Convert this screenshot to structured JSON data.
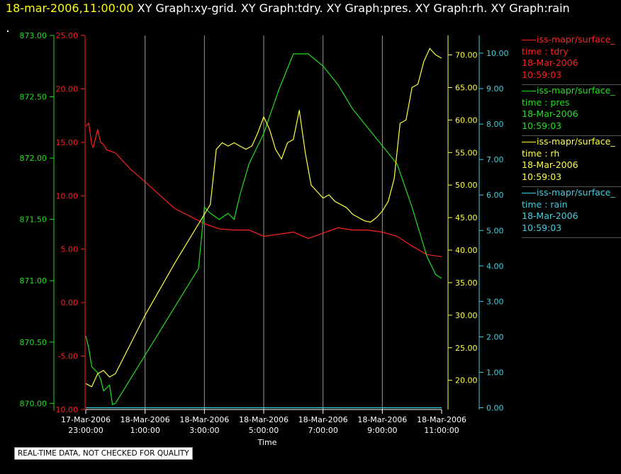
{
  "header": {
    "time": "18-mar-2006,11:00:00",
    "titles": "XY Graph:xy-grid.  XY Graph:tdry.  XY Graph:pres.  XY Graph:rh.  XY Graph:rain"
  },
  "quality_note": "REAL-TIME DATA, NOT CHECKED FOR QUALITY",
  "legend": [
    {
      "line1": "iss-mapr/surface_",
      "line2": "time : tdry",
      "line3": "18-Mar-2006",
      "line4": "10:59:03",
      "color": "#ff2020"
    },
    {
      "line1": "iss-mapr/surface_",
      "line2": "time : pres",
      "line3": "18-Mar-2006",
      "line4": "10:59:03",
      "color": "#20e020"
    },
    {
      "line1": "iss-mapr/surface_",
      "line2": "time : rh",
      "line3": "18-Mar-2006",
      "line4": "10:59:03",
      "color": "#ffff40"
    },
    {
      "line1": "iss-mapr/surface_",
      "line2": "time : rain",
      "line3": "18-Mar-2006",
      "line4": "10:59:03",
      "color": "#40d0e0"
    }
  ],
  "chart_data": {
    "type": "line",
    "xlabel": "Time",
    "x_range_hours": [
      -1,
      11
    ],
    "x_ticks": [
      {
        "hour": -1,
        "line1": "17-Mar-2006",
        "line2": "23:00:00"
      },
      {
        "hour": 1,
        "line1": "18-Mar-2006",
        "line2": "1:00:00"
      },
      {
        "hour": 3,
        "line1": "18-Mar-2006",
        "line2": "3:00:00"
      },
      {
        "hour": 5,
        "line1": "18-Mar-2006",
        "line2": "5:00:00"
      },
      {
        "hour": 7,
        "line1": "18-Mar-2006",
        "line2": "7:00:00"
      },
      {
        "hour": 9,
        "line1": "18-Mar-2006",
        "line2": "9:00:00"
      },
      {
        "hour": 11,
        "line1": "18-Mar-2006",
        "line2": "11:00:00"
      }
    ],
    "grid_x": true,
    "axes": {
      "pres": {
        "color": "#20e020",
        "range": [
          869.95,
          873.0
        ],
        "ticks": [
          "870.00",
          "870.50",
          "871.00",
          "871.50",
          "872.00",
          "872.50",
          "873.00"
        ]
      },
      "tdry": {
        "color": "#ff2020",
        "range": [
          -10,
          25
        ],
        "ticks": [
          "-10.00",
          "-5.00",
          "0.00",
          "5.00",
          "10.00",
          "15.00",
          "20.00",
          "25.00"
        ]
      },
      "rh": {
        "color": "#ffff40",
        "range": [
          15.5,
          73
        ],
        "ticks": [
          "20.00",
          "25.00",
          "30.00",
          "35.00",
          "40.00",
          "45.00",
          "50.00",
          "55.00",
          "60.00",
          "65.00",
          "70.00"
        ]
      },
      "rain": {
        "color": "#40d0e0",
        "range": [
          -0.05,
          10.5
        ],
        "ticks": [
          "0.00",
          "1.00",
          "2.00",
          "3.00",
          "4.00",
          "5.00",
          "6.00",
          "7.00",
          "8.00",
          "9.00",
          "10.00"
        ]
      }
    },
    "series": [
      {
        "name": "tdry",
        "axis": "tdry",
        "color": "#ff2020",
        "x": [
          -1.0,
          -0.9,
          -0.8,
          -0.75,
          -0.6,
          -0.5,
          -0.4,
          -0.3,
          -0.2,
          0.0,
          0.5,
          1.0,
          2.0,
          3.0,
          3.5,
          4.0,
          4.5,
          5.0,
          5.5,
          6.0,
          6.5,
          7.0,
          7.5,
          8.0,
          8.5,
          9.0,
          9.5,
          10.0,
          10.5,
          11.0
        ],
        "y": [
          16.5,
          16.8,
          14.8,
          14.5,
          16.2,
          15.0,
          14.8,
          14.3,
          14.2,
          14.0,
          12.5,
          11.3,
          8.8,
          7.4,
          6.9,
          6.8,
          6.8,
          6.2,
          6.4,
          6.6,
          6.0,
          6.5,
          7.0,
          6.8,
          6.8,
          6.6,
          6.2,
          5.3,
          4.5,
          4.3
        ]
      },
      {
        "name": "pres",
        "axis": "pres",
        "color": "#20e020",
        "x": [
          -1.0,
          -0.9,
          -0.8,
          -0.6,
          -0.5,
          -0.4,
          -0.2,
          -0.1,
          0.0,
          2.8,
          3.0,
          3.2,
          3.5,
          3.8,
          4.0,
          4.2,
          4.5,
          4.8,
          5.0,
          5.5,
          6.0,
          6.5,
          7.0,
          7.5,
          8.0,
          8.5,
          9.0,
          9.5,
          10.0,
          10.5,
          10.8,
          11.0
        ],
        "y": [
          870.55,
          870.45,
          870.3,
          870.25,
          870.2,
          870.1,
          870.15,
          869.99,
          870.0,
          871.1,
          871.6,
          871.55,
          871.5,
          871.55,
          871.5,
          871.7,
          871.95,
          872.1,
          872.2,
          872.55,
          872.85,
          872.85,
          872.75,
          872.6,
          872.4,
          872.25,
          872.1,
          871.95,
          871.6,
          871.2,
          871.05,
          871.02
        ]
      },
      {
        "name": "rh",
        "axis": "rh",
        "color": "#ffff40",
        "x": [
          -1.0,
          -0.8,
          -0.6,
          -0.4,
          -0.2,
          0.0,
          1.0,
          2.0,
          3.0,
          3.2,
          3.4,
          3.6,
          3.8,
          4.0,
          4.2,
          4.4,
          4.6,
          4.8,
          5.0,
          5.2,
          5.4,
          5.6,
          5.8,
          6.0,
          6.2,
          6.4,
          6.6,
          6.8,
          7.0,
          7.2,
          7.4,
          7.6,
          7.8,
          8.0,
          8.2,
          8.4,
          8.6,
          8.8,
          9.0,
          9.2,
          9.4,
          9.6,
          9.8,
          10.0,
          10.2,
          10.4,
          10.6,
          10.8,
          11.0
        ],
        "y": [
          19.5,
          19.0,
          21.0,
          21.5,
          20.5,
          21.0,
          30.0,
          38.0,
          45.5,
          47.0,
          55.5,
          56.5,
          56.0,
          56.5,
          56.0,
          55.5,
          56.0,
          58.0,
          60.5,
          58.5,
          55.5,
          54.0,
          56.5,
          57.0,
          61.5,
          55.0,
          50.0,
          49.0,
          48.0,
          48.5,
          47.5,
          47.0,
          46.5,
          45.5,
          45.0,
          44.5,
          44.3,
          45.0,
          46.0,
          47.5,
          51.0,
          59.5,
          60.0,
          65.0,
          65.5,
          69.0,
          71.0,
          70.0,
          69.5
        ]
      },
      {
        "name": "rain",
        "axis": "rain",
        "color": "#40d0e0",
        "x": [
          -1.0,
          11.0
        ],
        "y": [
          0.0,
          0.0
        ]
      }
    ]
  }
}
